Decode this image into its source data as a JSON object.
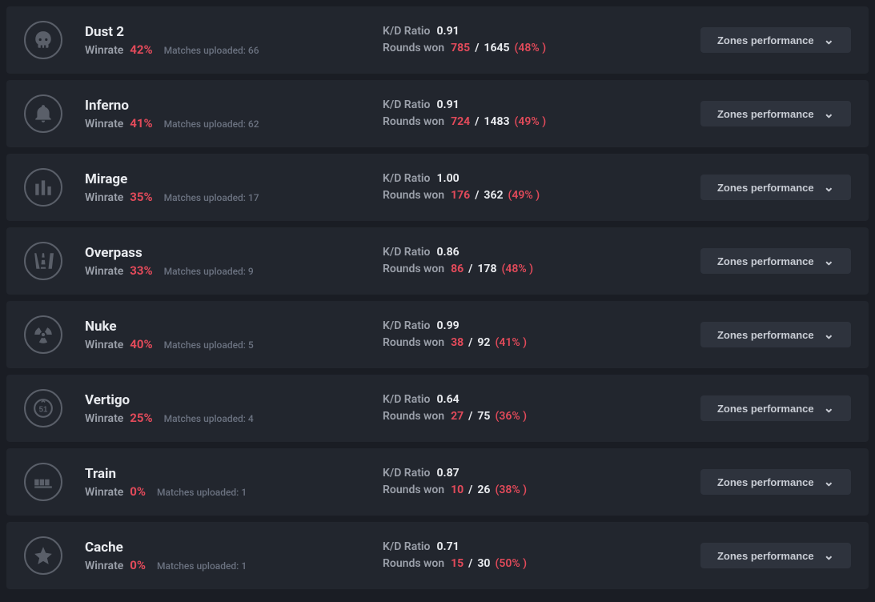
{
  "labels": {
    "winrate": "Winrate",
    "matches_uploaded_prefix": "Matches uploaded: ",
    "kd_ratio": "K/D Ratio",
    "rounds_won": "Rounds won",
    "zones_button": "Zones performance"
  },
  "colors": {
    "background_page": "#1a1d24",
    "background_row": "#22262e",
    "background_button": "#2e333d",
    "text_primary": "#e8eaee",
    "text_secondary": "#9ba0aa",
    "text_muted": "#6b7280",
    "accent_red": "#e24a5a",
    "icon_stroke": "#5a5f69"
  },
  "maps": [
    {
      "id": "dust2",
      "name": "Dust 2",
      "winrate_pct": "42%",
      "matches_uploaded": 66,
      "kd_ratio": "0.91",
      "rounds_won": "785",
      "rounds_total": "1645",
      "rounds_pct": "(48% )",
      "icon": "skull"
    },
    {
      "id": "inferno",
      "name": "Inferno",
      "winrate_pct": "41%",
      "matches_uploaded": 62,
      "kd_ratio": "0.91",
      "rounds_won": "724",
      "rounds_total": "1483",
      "rounds_pct": "(49% )",
      "icon": "bell"
    },
    {
      "id": "mirage",
      "name": "Mirage",
      "winrate_pct": "35%",
      "matches_uploaded": 17,
      "kd_ratio": "1.00",
      "rounds_won": "176",
      "rounds_total": "362",
      "rounds_pct": "(49% )",
      "icon": "towers"
    },
    {
      "id": "overpass",
      "name": "Overpass",
      "winrate_pct": "33%",
      "matches_uploaded": 9,
      "kd_ratio": "0.86",
      "rounds_won": "86",
      "rounds_total": "178",
      "rounds_pct": "(48% )",
      "icon": "highway"
    },
    {
      "id": "nuke",
      "name": "Nuke",
      "winrate_pct": "40%",
      "matches_uploaded": 5,
      "kd_ratio": "0.99",
      "rounds_won": "38",
      "rounds_total": "92",
      "rounds_pct": "(41% )",
      "icon": "radiation"
    },
    {
      "id": "vertigo",
      "name": "Vertigo",
      "winrate_pct": "25%",
      "matches_uploaded": 4,
      "kd_ratio": "0.64",
      "rounds_won": "27",
      "rounds_total": "75",
      "rounds_pct": "(36% )",
      "icon": "fiftyone"
    },
    {
      "id": "train",
      "name": "Train",
      "winrate_pct": "0%",
      "matches_uploaded": 1,
      "kd_ratio": "0.87",
      "rounds_won": "10",
      "rounds_total": "26",
      "rounds_pct": "(38% )",
      "icon": "traincars"
    },
    {
      "id": "cache",
      "name": "Cache",
      "winrate_pct": "0%",
      "matches_uploaded": 1,
      "kd_ratio": "0.71",
      "rounds_won": "15",
      "rounds_total": "30",
      "rounds_pct": "(50% )",
      "icon": "star"
    }
  ]
}
